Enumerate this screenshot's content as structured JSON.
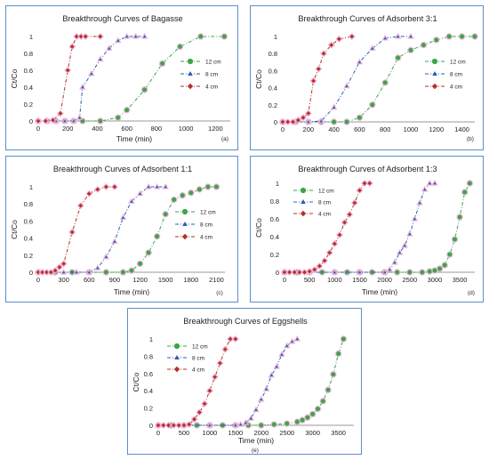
{
  "colors": {
    "green": "#3aa64a",
    "blue": "#2e5fb8",
    "red": "#b3322b",
    "halo": "#f2b6d9",
    "border": "#5b8fc9",
    "axis": "#9a9a9a"
  },
  "chart_data": [
    {
      "type": "line",
      "title": "Breakthrough Curves of Bagasse",
      "xlabel": "Time (min)",
      "ylabel": "Ct/Co",
      "tag": "(a)",
      "xlim": [
        0,
        1300
      ],
      "ylim": [
        0,
        1
      ],
      "xticks": [
        0,
        200,
        400,
        600,
        800,
        1000,
        1200
      ],
      "yticks": [
        0,
        0.2,
        0.4,
        0.6,
        0.8,
        1
      ],
      "legend": "middle-right",
      "series": [
        {
          "name": "12 cm",
          "marker": "circle",
          "color": "#3aa64a",
          "x": [
            0,
            60,
            120,
            180,
            240,
            300,
            420,
            540,
            600,
            720,
            840,
            960,
            1100,
            1260
          ],
          "y": [
            0,
            0,
            0,
            0,
            0,
            0,
            0,
            0.04,
            0.13,
            0.37,
            0.68,
            0.88,
            1,
            1
          ]
        },
        {
          "name": "8 cm",
          "marker": "triangle",
          "color": "#2e5fb8",
          "x": [
            0,
            60,
            120,
            180,
            240,
            280,
            300,
            360,
            420,
            480,
            540,
            600,
            660,
            720
          ],
          "y": [
            0,
            0,
            0,
            0,
            0,
            0.04,
            0.4,
            0.56,
            0.73,
            0.86,
            0.95,
            1,
            1,
            1
          ]
        },
        {
          "name": "4 cm",
          "marker": "diamond",
          "color": "#b3322b",
          "x": [
            0,
            50,
            100,
            150,
            200,
            230,
            260,
            290,
            320,
            420
          ],
          "y": [
            0,
            0,
            0.01,
            0.09,
            0.6,
            0.88,
            1,
            1,
            1,
            1
          ]
        }
      ]
    },
    {
      "type": "line",
      "title": "Breakthrough Curves of Adsorbent 3:1",
      "xlabel": "",
      "ylabel": "Ct/Co",
      "tag": "(b)",
      "xlim": [
        0,
        1500
      ],
      "ylim": [
        0,
        1
      ],
      "xticks": [
        0,
        200,
        400,
        600,
        800,
        1000,
        1200,
        1400
      ],
      "yticks": [
        0,
        0.2,
        0.4,
        0.6,
        0.8,
        1
      ],
      "legend": "middle-right",
      "series": [
        {
          "name": "12 cm",
          "marker": "circle",
          "color": "#3aa64a",
          "x": [
            0,
            100,
            200,
            300,
            400,
            500,
            600,
            700,
            800,
            900,
            1000,
            1100,
            1200,
            1300,
            1400,
            1500
          ],
          "y": [
            0,
            0,
            0,
            0,
            0,
            0,
            0.05,
            0.2,
            0.46,
            0.75,
            0.84,
            0.9,
            0.96,
            1,
            1,
            1
          ]
        },
        {
          "name": "8 cm",
          "marker": "triangle",
          "color": "#2e5fb8",
          "x": [
            0,
            100,
            200,
            300,
            400,
            500,
            600,
            700,
            800,
            900,
            1000
          ],
          "y": [
            0,
            0,
            0,
            0.01,
            0.17,
            0.42,
            0.7,
            0.86,
            0.98,
            1,
            1
          ]
        },
        {
          "name": "4 cm",
          "marker": "diamond",
          "color": "#b3322b",
          "x": [
            0,
            40,
            80,
            120,
            160,
            200,
            240,
            280,
            320,
            380,
            440,
            540
          ],
          "y": [
            0,
            0,
            0,
            0.02,
            0.05,
            0.1,
            0.48,
            0.62,
            0.8,
            0.9,
            0.97,
            1
          ]
        }
      ]
    },
    {
      "type": "line",
      "title": "Breakthrough Curves of Adsorbent 1:1",
      "xlabel": "Time (min)",
      "ylabel": "Ct/Co",
      "tag": "(c)",
      "xlim": [
        0,
        2200
      ],
      "ylim": [
        0,
        1
      ],
      "xticks": [
        0,
        300,
        600,
        900,
        1200,
        1500,
        1800,
        2100
      ],
      "yticks": [
        0,
        0.2,
        0.4,
        0.6,
        0.8,
        1
      ],
      "legend": "middle-right",
      "series": [
        {
          "name": "12 cm",
          "marker": "circle",
          "color": "#3aa64a",
          "x": [
            0,
            200,
            400,
            600,
            800,
            1000,
            1100,
            1200,
            1300,
            1400,
            1500,
            1600,
            1700,
            1800,
            1900,
            2000,
            2100
          ],
          "y": [
            0,
            0,
            0,
            0,
            0,
            0,
            0.02,
            0.1,
            0.23,
            0.42,
            0.68,
            0.85,
            0.9,
            0.93,
            0.97,
            1,
            1
          ]
        },
        {
          "name": "8 cm",
          "marker": "triangle",
          "color": "#2e5fb8",
          "x": [
            0,
            150,
            300,
            450,
            600,
            700,
            800,
            900,
            1000,
            1100,
            1200,
            1300,
            1400,
            1500
          ],
          "y": [
            0,
            0,
            0,
            0,
            0,
            0.05,
            0.18,
            0.36,
            0.64,
            0.83,
            0.92,
            1,
            1,
            1
          ]
        },
        {
          "name": "4 cm",
          "marker": "diamond",
          "color": "#b3322b",
          "x": [
            0,
            50,
            100,
            150,
            200,
            250,
            300,
            400,
            500,
            600,
            700,
            800,
            900
          ],
          "y": [
            0,
            0,
            0,
            0,
            0.02,
            0.06,
            0.1,
            0.47,
            0.78,
            0.92,
            0.97,
            1,
            1
          ]
        }
      ]
    },
    {
      "type": "line",
      "title": "Breakthrough Curves of Adsorbent 1:3",
      "xlabel": "Time (min)",
      "ylabel": "Ct/Co",
      "tag": "(d)",
      "xlim": [
        0,
        3800
      ],
      "ylim": [
        0,
        1
      ],
      "xticks": [
        0,
        500,
        1000,
        1500,
        2000,
        2500,
        3000,
        3500
      ],
      "yticks": [
        0,
        0.2,
        0.4,
        0.6,
        0.8,
        1
      ],
      "legend": "top-left",
      "series": [
        {
          "name": "12 cm",
          "marker": "circle",
          "color": "#3aa64a",
          "x": [
            0,
            250,
            500,
            750,
            1000,
            1250,
            1500,
            1750,
            2000,
            2250,
            2500,
            2750,
            2900,
            3000,
            3100,
            3200,
            3300,
            3400,
            3500,
            3600,
            3700
          ],
          "y": [
            0,
            0,
            0,
            0,
            0,
            0,
            0,
            0,
            0,
            0,
            0,
            0,
            0.01,
            0.02,
            0.04,
            0.08,
            0.2,
            0.37,
            0.62,
            0.9,
            1
          ]
        },
        {
          "name": "8 cm",
          "marker": "triangle",
          "color": "#2e5fb8",
          "x": [
            0,
            500,
            1000,
            1500,
            2000,
            2100,
            2200,
            2300,
            2400,
            2500,
            2600,
            2700,
            2800,
            2900,
            3000
          ],
          "y": [
            0,
            0,
            0,
            0,
            0,
            0.03,
            0.11,
            0.22,
            0.3,
            0.43,
            0.6,
            0.78,
            0.93,
            1,
            1
          ]
        },
        {
          "name": "4 cm",
          "marker": "diamond",
          "color": "#b3322b",
          "x": [
            0,
            100,
            200,
            300,
            400,
            500,
            600,
            700,
            800,
            900,
            1000,
            1100,
            1200,
            1300,
            1400,
            1500,
            1600,
            1700
          ],
          "y": [
            0,
            0,
            0,
            0,
            0,
            0.01,
            0.03,
            0.07,
            0.13,
            0.22,
            0.32,
            0.42,
            0.56,
            0.65,
            0.78,
            0.92,
            1,
            1
          ]
        }
      ]
    },
    {
      "type": "line",
      "title": "Breakthrough Curves of Eggshells",
      "xlabel": "Time (min)",
      "ylabel": "Ct/Co",
      "tag": "(e)",
      "xlim": [
        0,
        3800
      ],
      "ylim": [
        0,
        1
      ],
      "xticks": [
        0,
        500,
        1000,
        1500,
        2000,
        2500,
        3000,
        3500
      ],
      "yticks": [
        0,
        0.2,
        0.4,
        0.6,
        0.8,
        1
      ],
      "legend": "top-left",
      "series": [
        {
          "name": "12 cm",
          "marker": "circle",
          "color": "#3aa64a",
          "x": [
            0,
            250,
            500,
            750,
            1000,
            1250,
            1500,
            1750,
            2000,
            2250,
            2500,
            2700,
            2800,
            2900,
            3000,
            3100,
            3200,
            3300,
            3400,
            3500,
            3600
          ],
          "y": [
            0,
            0,
            0,
            0,
            0,
            0,
            0,
            0,
            0,
            0.01,
            0.02,
            0.04,
            0.06,
            0.09,
            0.13,
            0.19,
            0.28,
            0.41,
            0.59,
            0.83,
            1
          ]
        },
        {
          "name": "8 cm",
          "marker": "triangle",
          "color": "#2e5fb8",
          "x": [
            0,
            500,
            1000,
            1500,
            1600,
            1700,
            1800,
            1900,
            2000,
            2100,
            2200,
            2300,
            2400,
            2500,
            2600,
            2700
          ],
          "y": [
            0,
            0,
            0,
            0,
            0.01,
            0.03,
            0.08,
            0.18,
            0.3,
            0.42,
            0.58,
            0.68,
            0.82,
            0.92,
            0.97,
            1
          ]
        },
        {
          "name": "4 cm",
          "marker": "diamond",
          "color": "#b3322b",
          "x": [
            0,
            100,
            200,
            300,
            400,
            500,
            600,
            700,
            800,
            900,
            1000,
            1100,
            1200,
            1300,
            1400,
            1500
          ],
          "y": [
            0,
            0,
            0,
            0,
            0,
            0,
            0.01,
            0.07,
            0.15,
            0.25,
            0.4,
            0.56,
            0.72,
            0.88,
            1,
            1
          ]
        }
      ]
    }
  ]
}
